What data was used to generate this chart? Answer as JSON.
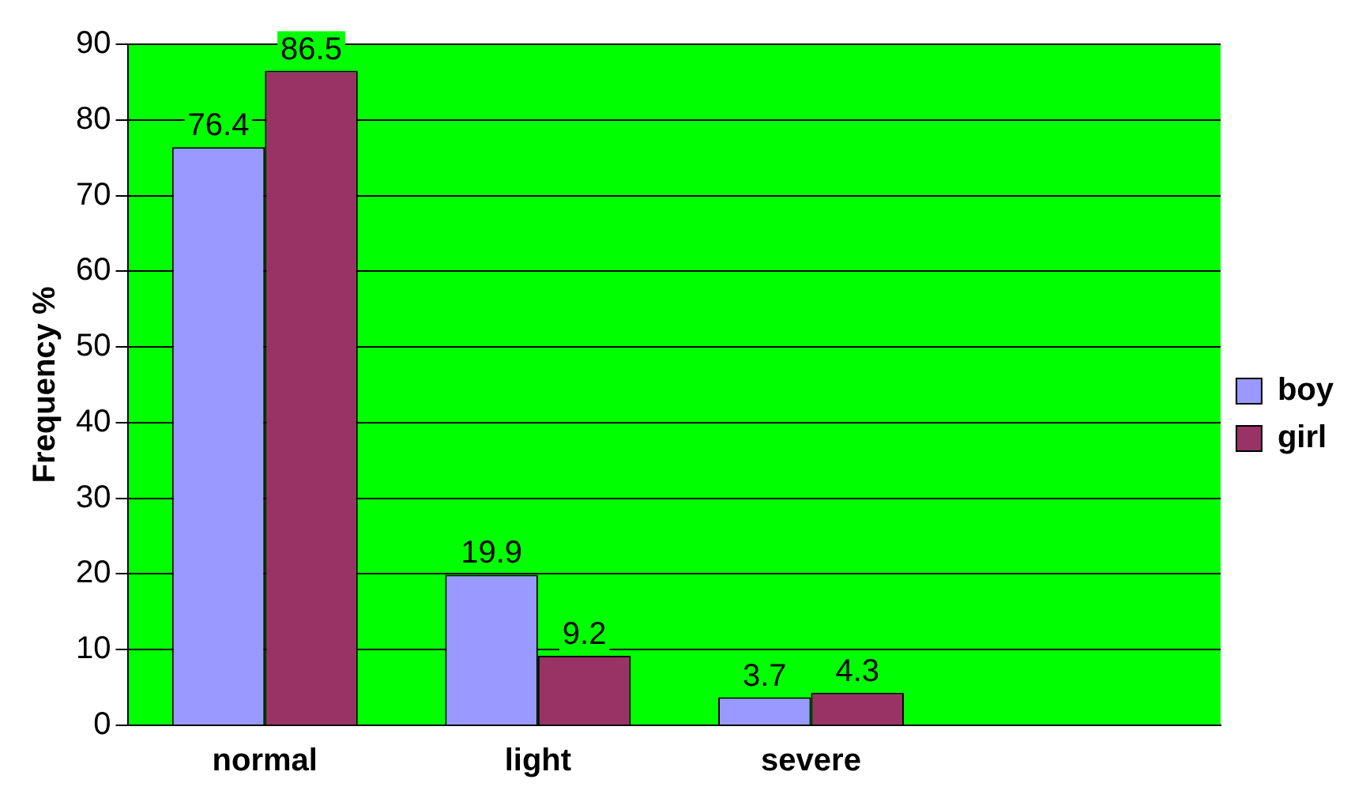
{
  "chart_data": {
    "type": "bar",
    "ylabel": "Frequency %",
    "categories": [
      "normal",
      "light",
      "severe",
      null
    ],
    "series": [
      {
        "name": "boy",
        "color": "#9999ff",
        "values": [
          76.4,
          19.9,
          3.7,
          null
        ]
      },
      {
        "name": "girl",
        "color": "#993366",
        "values": [
          86.5,
          9.2,
          4.3,
          null
        ]
      }
    ],
    "ylim": [
      0,
      90
    ],
    "yticks": [
      0,
      10,
      20,
      30,
      40,
      50,
      60,
      70,
      80,
      90
    ],
    "grid": "y",
    "legend": "right",
    "data_labels": true
  }
}
